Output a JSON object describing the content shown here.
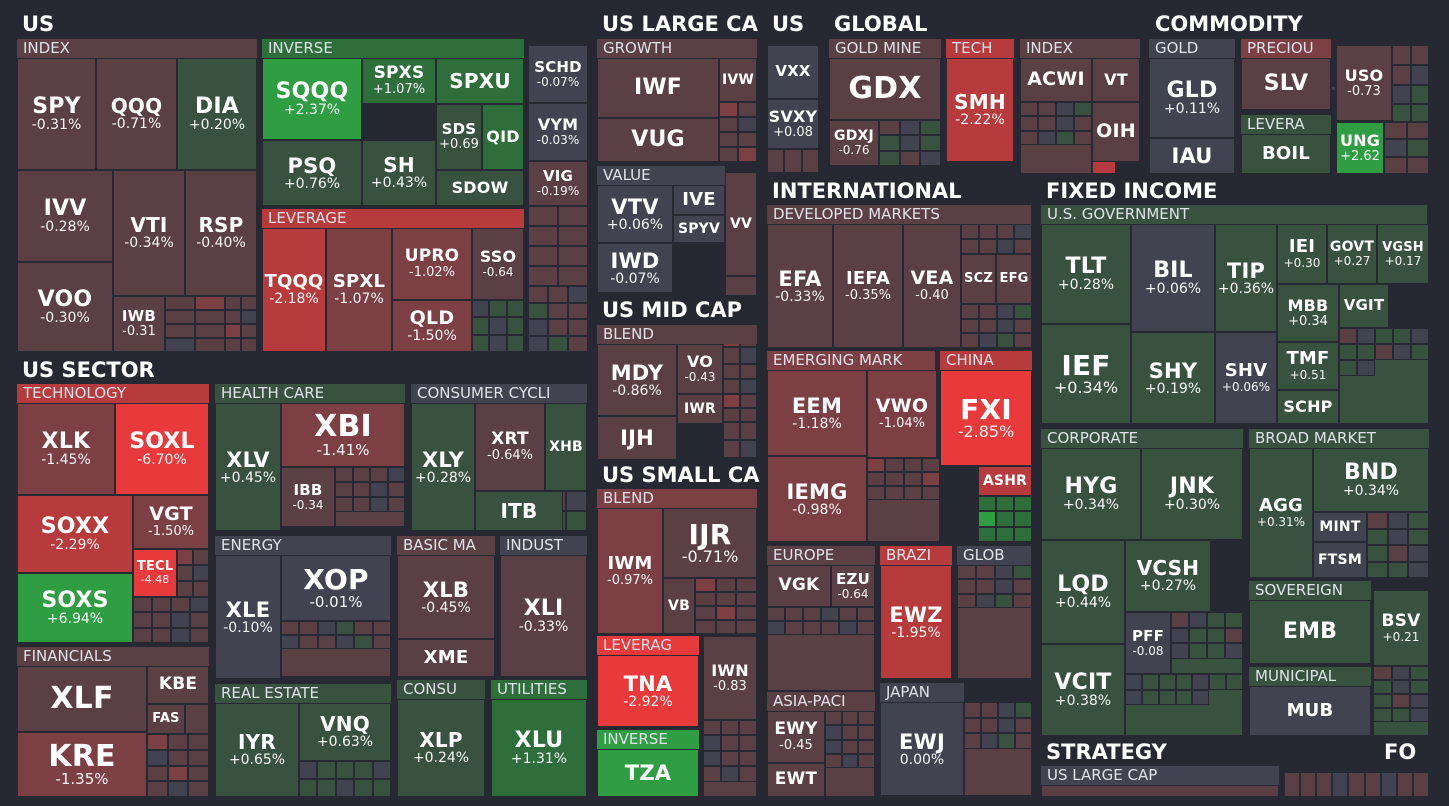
{
  "colors": {
    "bg": "#262931",
    "neutral": "#414450",
    "pos1": "#39523f",
    "pos2": "#2e6e3b",
    "pos3": "#2f9e43",
    "neg1": "#5a3f45",
    "neg2": "#7b3f44",
    "neg3": "#b73b3c",
    "neg4": "#e83a3a"
  },
  "chart_data": {
    "type": "heatmap",
    "sections": [
      "US",
      "US LARGE CA",
      "US",
      "GLOBAL",
      "COMMODITY",
      "US SECTOR",
      "INTERNATIONAL",
      "FIXED INCOME",
      "US MID CAP",
      "US SMALL CA",
      "STRATEGY",
      "FO"
    ],
    "groups": [
      "INDEX",
      "INVERSE",
      "LEVERAGE",
      "GROWTH",
      "VALUE",
      "BLEND",
      "BLEND",
      "LEVERAG",
      "INVERSE",
      "GOLD MINE",
      "TECH",
      "INDEX",
      "GOLD",
      "PRECIOU",
      "LEVERA",
      "DEVELOPED MARKETS",
      "EMERGING MARK",
      "CHINA",
      "EUROPE",
      "BRAZI",
      "GLOB",
      "ASIA-PACI",
      "JAPAN",
      "U.S. GOVERNMENT",
      "CORPORATE",
      "BROAD MARKET",
      "SOVEREIGN",
      "MUNICIPAL",
      "US LARGE CAP",
      "TECHNOLOGY",
      "HEALTH CARE",
      "CONSUMER CYCLI",
      "ENERGY",
      "BASIC MA",
      "INDUST",
      "FINANCIALS",
      "REAL ESTATE",
      "CONSU",
      "UTILITIES"
    ],
    "tiles": [
      {
        "symbol": "SPY",
        "change": "-0.31%",
        "value": -0.31
      },
      {
        "symbol": "QQQ",
        "change": "-0.71%",
        "value": -0.71
      },
      {
        "symbol": "DIA",
        "change": "+0.20%",
        "value": 0.2
      },
      {
        "symbol": "IVV",
        "change": "-0.28%",
        "value": -0.28
      },
      {
        "symbol": "VTI",
        "change": "-0.34%",
        "value": -0.34
      },
      {
        "symbol": "RSP",
        "change": "-0.40%",
        "value": -0.4
      },
      {
        "symbol": "VOO",
        "change": "-0.30%",
        "value": -0.3
      },
      {
        "symbol": "IWB",
        "change": "-0.31",
        "value": -0.31
      },
      {
        "symbol": "SQQQ",
        "change": "+2.37%",
        "value": 2.37
      },
      {
        "symbol": "SPXS",
        "change": "+1.07%",
        "value": 1.07
      },
      {
        "symbol": "SPXU",
        "change": "",
        "value": 1.0
      },
      {
        "symbol": "SDS",
        "change": "+0.69",
        "value": 0.69
      },
      {
        "symbol": "QID",
        "change": "",
        "value": 1.4
      },
      {
        "symbol": "PSQ",
        "change": "+0.76%",
        "value": 0.76
      },
      {
        "symbol": "SH",
        "change": "+0.43%",
        "value": 0.43
      },
      {
        "symbol": "SDOW",
        "change": "",
        "value": 0.5
      },
      {
        "symbol": "SCHD",
        "change": "-0.07%",
        "value": -0.07
      },
      {
        "symbol": "VYM",
        "change": "-0.03%",
        "value": -0.03
      },
      {
        "symbol": "VIG",
        "change": "-0.19%",
        "value": -0.19
      },
      {
        "symbol": "TQQQ",
        "change": "-2.18%",
        "value": -2.18
      },
      {
        "symbol": "SPXL",
        "change": "-1.07%",
        "value": -1.07
      },
      {
        "symbol": "UPRO",
        "change": "-1.02%",
        "value": -1.02
      },
      {
        "symbol": "SSO",
        "change": "-0.64",
        "value": -0.64
      },
      {
        "symbol": "QLD",
        "change": "-1.50%",
        "value": -1.5
      },
      {
        "symbol": "IWF",
        "change": "",
        "value": -0.6
      },
      {
        "symbol": "IVW",
        "change": "",
        "value": -0.5
      },
      {
        "symbol": "VUG",
        "change": "",
        "value": -0.7
      },
      {
        "symbol": "VTV",
        "change": "+0.06%",
        "value": 0.06
      },
      {
        "symbol": "IVE",
        "change": "",
        "value": 0.05
      },
      {
        "symbol": "SPYV",
        "change": "",
        "value": 0.05
      },
      {
        "symbol": "VV",
        "change": "",
        "value": -0.3
      },
      {
        "symbol": "IWD",
        "change": "-0.07%",
        "value": -0.07
      },
      {
        "symbol": "VXX",
        "change": "",
        "value": -0.1
      },
      {
        "symbol": "SVXY",
        "change": "+0.08",
        "value": 0.08
      },
      {
        "symbol": "GDX",
        "change": "",
        "value": -0.7
      },
      {
        "symbol": "GDXJ",
        "change": "-0.76",
        "value": -0.76
      },
      {
        "symbol": "SMH",
        "change": "-2.22%",
        "value": -2.22
      },
      {
        "symbol": "ACWI",
        "change": "",
        "value": -0.4
      },
      {
        "symbol": "VT",
        "change": "",
        "value": -0.4
      },
      {
        "symbol": "OIH",
        "change": "",
        "value": -0.6
      },
      {
        "symbol": "GLD",
        "change": "+0.11%",
        "value": 0.11
      },
      {
        "symbol": "IAU",
        "change": "",
        "value": 0.1
      },
      {
        "symbol": "SLV",
        "change": "",
        "value": -0.8
      },
      {
        "symbol": "USO",
        "change": "-0.73",
        "value": -0.73
      },
      {
        "symbol": "BOIL",
        "change": "",
        "value": 0.5
      },
      {
        "symbol": "UNG",
        "change": "+2.62",
        "value": 2.62
      },
      {
        "symbol": "EFA",
        "change": "-0.33%",
        "value": -0.33
      },
      {
        "symbol": "IEFA",
        "change": "-0.35%",
        "value": -0.35
      },
      {
        "symbol": "VEA",
        "change": "-0.40",
        "value": -0.4
      },
      {
        "symbol": "SCZ",
        "change": "",
        "value": -0.3
      },
      {
        "symbol": "EFG",
        "change": "",
        "value": -0.3
      },
      {
        "symbol": "EEM",
        "change": "-1.18%",
        "value": -1.18
      },
      {
        "symbol": "VWO",
        "change": "-1.04%",
        "value": -1.04
      },
      {
        "symbol": "IEMG",
        "change": "-0.98%",
        "value": -0.98
      },
      {
        "symbol": "FXI",
        "change": "-2.85%",
        "value": -2.85
      },
      {
        "symbol": "ASHR",
        "change": "",
        "value": -1.6
      },
      {
        "symbol": "VGK",
        "change": "",
        "value": -0.5
      },
      {
        "symbol": "EZU",
        "change": "-0.64",
        "value": -0.64
      },
      {
        "symbol": "EWZ",
        "change": "-1.95%",
        "value": -1.95
      },
      {
        "symbol": "EWY",
        "change": "-0.45",
        "value": -0.45
      },
      {
        "symbol": "EWT",
        "change": "",
        "value": -0.6
      },
      {
        "symbol": "EWJ",
        "change": "0.00%",
        "value": 0.0
      },
      {
        "symbol": "TLT",
        "change": "+0.28%",
        "value": 0.28
      },
      {
        "symbol": "BIL",
        "change": "+0.06%",
        "value": 0.06
      },
      {
        "symbol": "TIP",
        "change": "+0.36%",
        "value": 0.36
      },
      {
        "symbol": "IEI",
        "change": "+0.30",
        "value": 0.3
      },
      {
        "symbol": "GOVT",
        "change": "+0.27",
        "value": 0.27
      },
      {
        "symbol": "VGSH",
        "change": "+0.17",
        "value": 0.17
      },
      {
        "symbol": "MBB",
        "change": "+0.34",
        "value": 0.34
      },
      {
        "symbol": "VGIT",
        "change": "",
        "value": 0.3
      },
      {
        "symbol": "IEF",
        "change": "+0.34%",
        "value": 0.34
      },
      {
        "symbol": "SHY",
        "change": "+0.19%",
        "value": 0.19
      },
      {
        "symbol": "SHV",
        "change": "+0.06%",
        "value": 0.06
      },
      {
        "symbol": "TMF",
        "change": "+0.51",
        "value": 0.51
      },
      {
        "symbol": "SCHP",
        "change": "",
        "value": 0.3
      },
      {
        "symbol": "HYG",
        "change": "+0.34%",
        "value": 0.34
      },
      {
        "symbol": "JNK",
        "change": "+0.30%",
        "value": 0.3
      },
      {
        "symbol": "LQD",
        "change": "+0.44%",
        "value": 0.44
      },
      {
        "symbol": "VCSH",
        "change": "+0.27%",
        "value": 0.27
      },
      {
        "symbol": "PFF",
        "change": "-0.08",
        "value": -0.08
      },
      {
        "symbol": "VCIT",
        "change": "+0.38%",
        "value": 0.38
      },
      {
        "symbol": "AGG",
        "change": "+0.31%",
        "value": 0.31
      },
      {
        "symbol": "BND",
        "change": "+0.34%",
        "value": 0.34
      },
      {
        "symbol": "MINT",
        "change": "",
        "value": 0.05
      },
      {
        "symbol": "FTSM",
        "change": "",
        "value": 0.05
      },
      {
        "symbol": "EMB",
        "change": "",
        "value": 0.35
      },
      {
        "symbol": "BSV",
        "change": "+0.21",
        "value": 0.21
      },
      {
        "symbol": "MUB",
        "change": "",
        "value": 0.1
      },
      {
        "symbol": "MDY",
        "change": "-0.86%",
        "value": -0.86
      },
      {
        "symbol": "VO",
        "change": "-0.43",
        "value": -0.43
      },
      {
        "symbol": "IWR",
        "change": "",
        "value": -0.5
      },
      {
        "symbol": "IJH",
        "change": "",
        "value": -0.8
      },
      {
        "symbol": "IWM",
        "change": "-0.97%",
        "value": -0.97
      },
      {
        "symbol": "IJR",
        "change": "-0.71%",
        "value": -0.71
      },
      {
        "symbol": "VB",
        "change": "",
        "value": -0.7
      },
      {
        "symbol": "TNA",
        "change": "-2.92%",
        "value": -2.92
      },
      {
        "symbol": "IWN",
        "change": "-0.83",
        "value": -0.83
      },
      {
        "symbol": "TZA",
        "change": "",
        "value": 2.9
      },
      {
        "symbol": "XLK",
        "change": "-1.45%",
        "value": -1.45
      },
      {
        "symbol": "SOXL",
        "change": "-6.70%",
        "value": -6.7
      },
      {
        "symbol": "SOXX",
        "change": "-2.29%",
        "value": -2.29
      },
      {
        "symbol": "VGT",
        "change": "-1.50%",
        "value": -1.5
      },
      {
        "symbol": "TECL",
        "change": "-4.48",
        "value": -4.48
      },
      {
        "symbol": "SOXS",
        "change": "+6.94%",
        "value": 6.94
      },
      {
        "symbol": "XLV",
        "change": "+0.45%",
        "value": 0.45
      },
      {
        "symbol": "XBI",
        "change": "-1.41%",
        "value": -1.41
      },
      {
        "symbol": "IBB",
        "change": "-0.34",
        "value": -0.34
      },
      {
        "symbol": "XLY",
        "change": "+0.28%",
        "value": 0.28
      },
      {
        "symbol": "XRT",
        "change": "-0.64%",
        "value": -0.64
      },
      {
        "symbol": "XHB",
        "change": "",
        "value": 0.3
      },
      {
        "symbol": "ITB",
        "change": "",
        "value": 0.6
      },
      {
        "symbol": "XLE",
        "change": "-0.10%",
        "value": -0.1
      },
      {
        "symbol": "XOP",
        "change": "-0.01%",
        "value": -0.01
      },
      {
        "symbol": "XLB",
        "change": "-0.45%",
        "value": -0.45
      },
      {
        "symbol": "XME",
        "change": "",
        "value": -0.7
      },
      {
        "symbol": "XLI",
        "change": "-0.33%",
        "value": -0.33
      },
      {
        "symbol": "XLF",
        "change": "",
        "value": -0.6
      },
      {
        "symbol": "KBE",
        "change": "",
        "value": -0.8
      },
      {
        "symbol": "FAS",
        "change": "",
        "value": -0.5
      },
      {
        "symbol": "KRE",
        "change": "-1.35%",
        "value": -1.35
      },
      {
        "symbol": "IYR",
        "change": "+0.65%",
        "value": 0.65
      },
      {
        "symbol": "VNQ",
        "change": "+0.63%",
        "value": 0.63
      },
      {
        "symbol": "XLP",
        "change": "+0.24%",
        "value": 0.24
      },
      {
        "symbol": "XLU",
        "change": "+1.31%",
        "value": 1.31
      }
    ]
  }
}
